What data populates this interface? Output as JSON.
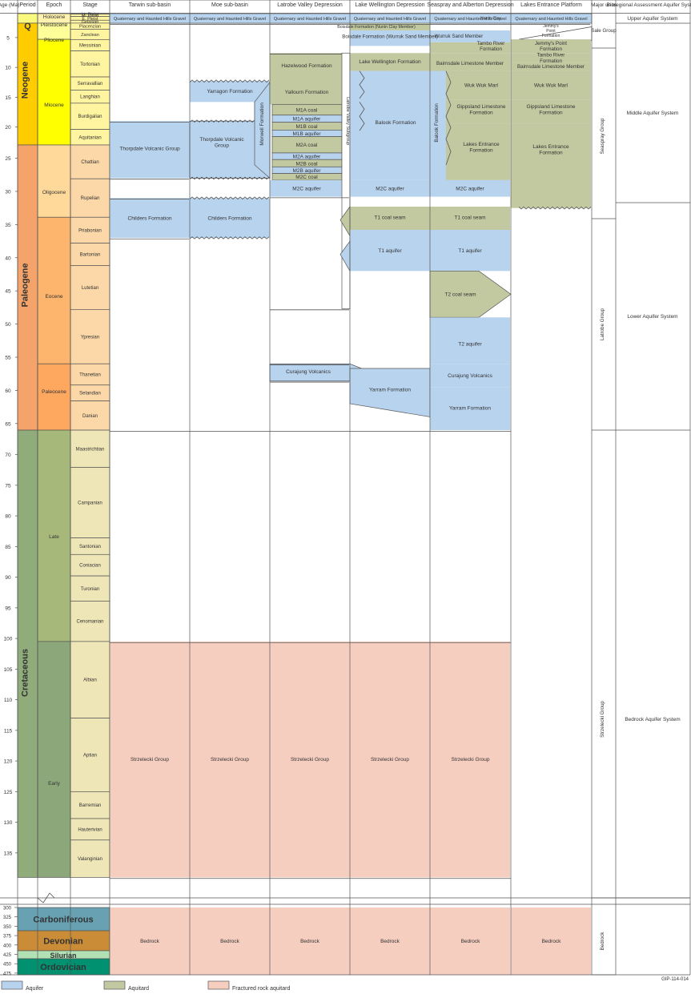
{
  "headers": {
    "age": "Age (Ma)",
    "period": "Period",
    "epoch": "Epoch",
    "stage": "Stage",
    "basins": [
      "Tarwin sub-basin",
      "Moe sub-basin",
      "Latrobe Valley Depression",
      "Lake Wellington Depression",
      "Seaspray and Alberton Depression",
      "Lakes Entrance Platform"
    ],
    "major_units": "Major units",
    "aquifer_system": "Bioregional Assessment Aquifer System"
  },
  "age_ticks": [
    "5",
    "10",
    "15",
    "20",
    "25",
    "30",
    "35",
    "40",
    "45",
    "50",
    "55",
    "60",
    "65",
    "70",
    "75",
    "80",
    "85",
    "90",
    "95",
    "100",
    "105",
    "110",
    "115",
    "120",
    "125",
    "130",
    "135"
  ],
  "old_age_ticks": [
    "300",
    "325",
    "350",
    "375",
    "400",
    "425",
    "450",
    "475"
  ],
  "periods": [
    {
      "label": "Q",
      "color": "#f9f97f"
    },
    {
      "label": "Neogene",
      "color": "#ffcc00"
    },
    {
      "label": "Paleogene",
      "color": "#f4a46a"
    },
    {
      "label": "Cretaceous",
      "color": "#8fac7a"
    }
  ],
  "old_periods": [
    {
      "label": "Carboniferous",
      "color": "#67a1b2"
    },
    {
      "label": "Devonian",
      "color": "#cb8c37"
    },
    {
      "label": "Silurian",
      "color": "#b3e1b6"
    },
    {
      "label": "Ordovician",
      "color": "#009270"
    }
  ],
  "epochs": [
    {
      "label": "Holocene",
      "color": "#feebd2"
    },
    {
      "label": "Pleistocene",
      "color": "#fff2ae"
    },
    {
      "label": "Pliocene",
      "color": "#ffff99"
    },
    {
      "label": "Miocene",
      "color": "#ffff00"
    },
    {
      "label": "Oligocene",
      "color": "#fed99a"
    },
    {
      "label": "Eocene",
      "color": "#fdb46c"
    },
    {
      "label": "Paleocene",
      "color": "#fda75f"
    },
    {
      "label": "Late",
      "color": "#a6b97b"
    },
    {
      "label": "Early",
      "color": "#8ca87a"
    }
  ],
  "stages": [
    "Lt. Pleist",
    "M. Pleist",
    "E. Pleist",
    "Gelasian",
    "Piacenzian",
    "Zanclean",
    "Messinian",
    "Tortonian",
    "Serravallian",
    "Langhian",
    "Burdigalian",
    "Aquitanian",
    "Chattian",
    "Rupelian",
    "Priabonian",
    "Bartonian",
    "Lutetian",
    "Ypresian",
    "Thanetian",
    "Selandian",
    "Danian",
    "Maastrichtian",
    "Campanian",
    "Santonian",
    "Coniacian",
    "Turonian",
    "Cenomanian",
    "Albian",
    "Aptian",
    "Barremian",
    "Hauterivian",
    "Valanginian"
  ],
  "colors": {
    "aquifer": "#b8d3ee",
    "aquitard": "#c2c8a0",
    "fractured": "#f6cec0",
    "line": "#555555"
  },
  "gravels": "Quaternary and Haunted Hills Gravel",
  "tarwin": {
    "thorpdale": "Thorpdale Volcanic Group",
    "childers": "Childers Formation",
    "strzelecki": "Strzelecki Group",
    "bedrock": "Bedrock"
  },
  "moe": {
    "yarragon": "Yarragon Formation",
    "thorpdale": "Thorpdale Volcanic Group",
    "childers": "Childers Formation",
    "strzelecki": "Strzelecki Group",
    "bedrock": "Bedrock"
  },
  "latrobe": {
    "hazelwood": "Hazelwood Formation",
    "yallourn": "Yallourn Formation",
    "morwell": "Morwell Formation",
    "m1a_coal": "M1A coal",
    "m1a_aquifer": "M1A aquifer",
    "m1b_coal": "M1B coal",
    "m1b_aquifer": "M1B aquifer",
    "m2a_coal": "M2A coal",
    "m2a_aquifer": "M2A aquifer",
    "m2b_coal": "M2B coal",
    "m2b_aquifer": "M2B aquifer",
    "m2c_coal": "M2C coal",
    "m2c_aquifer": "M2C aquifer",
    "latrobe_valley_subgroup": "Latrobe Valley Subgroup",
    "curajung": "Curajung Volcanics",
    "strzelecki": "Strzelecki Group",
    "bedrock": "Bedrock"
  },
  "wellington": {
    "boisdale_nunin": "Boisdale Formation (Nunin Clay Member)",
    "boisdale_wurruk": "Boisdale Formation (Wurruk Sand Member)",
    "lw_formation": "Lake Wellington Formation",
    "balook": "Balook Formation",
    "m2c_aquifer": "M2C aquifer",
    "t1_coal": "T1 coal seam",
    "t1_aquifer": "T1 aquifer",
    "yarram": "Yarram Formation",
    "strzelecki": "Strzelecki Group",
    "bedrock": "Bedrock"
  },
  "seaspray": {
    "nunin": "Nunin Clay",
    "wurruk": "Wurruk Sand Member",
    "tambo": "Tambo River Formation",
    "bairnsdale": "Bairnsdale Limestone Member",
    "wukwuk": "Wuk Wuk Marl",
    "gippsland": "Gippsland Limestone Formation",
    "balook": "Balook Formation",
    "lakes_entrance": "Lakes Entrance Formation",
    "m2c_aquifer": "M2C aquifer",
    "t1_coal": "T1 coal seam",
    "t1_aquifer": "T1 aquifer",
    "t2_coal": "T2 coal seam",
    "t2_aquifer": "T2 aquifer",
    "curajung": "Curajung Volcanics",
    "yarram": "Yarram Formation",
    "strzelecki": "Strzelecki Group",
    "bedrock": "Bedrock"
  },
  "lakes": {
    "jemmys_small": "Jemmy's Point Formation",
    "jemmys": "Jemmy's Point Formation",
    "tambo": "Tambo River Formation",
    "bairnsdale": "Bairnsdale Limestone Member",
    "wukwuk": "Wuk Wuk Marl",
    "gippsland": "Gippsland Limestone Formation",
    "lakes_entrance": "Lakes Entrance Formation",
    "bedrock": "Bedrock"
  },
  "major_units": [
    "Sale Group",
    "Seaspray Group",
    "Latrobe Group",
    "Strzelecki Group",
    "Bedrock"
  ],
  "aquifer_systems": [
    "Upper Aquifer System",
    "Middle Aquifer System",
    "Lower Aquifer System",
    "Bedrock Aquifer System"
  ],
  "legend": [
    {
      "label": "Aquifer",
      "color": "#b8d3ee"
    },
    {
      "label": "Aquitard",
      "color": "#c2c8a0"
    },
    {
      "label": "Fractured rock aquitard",
      "color": "#f6cec0"
    }
  ],
  "figure_code": "GIP-114-014"
}
